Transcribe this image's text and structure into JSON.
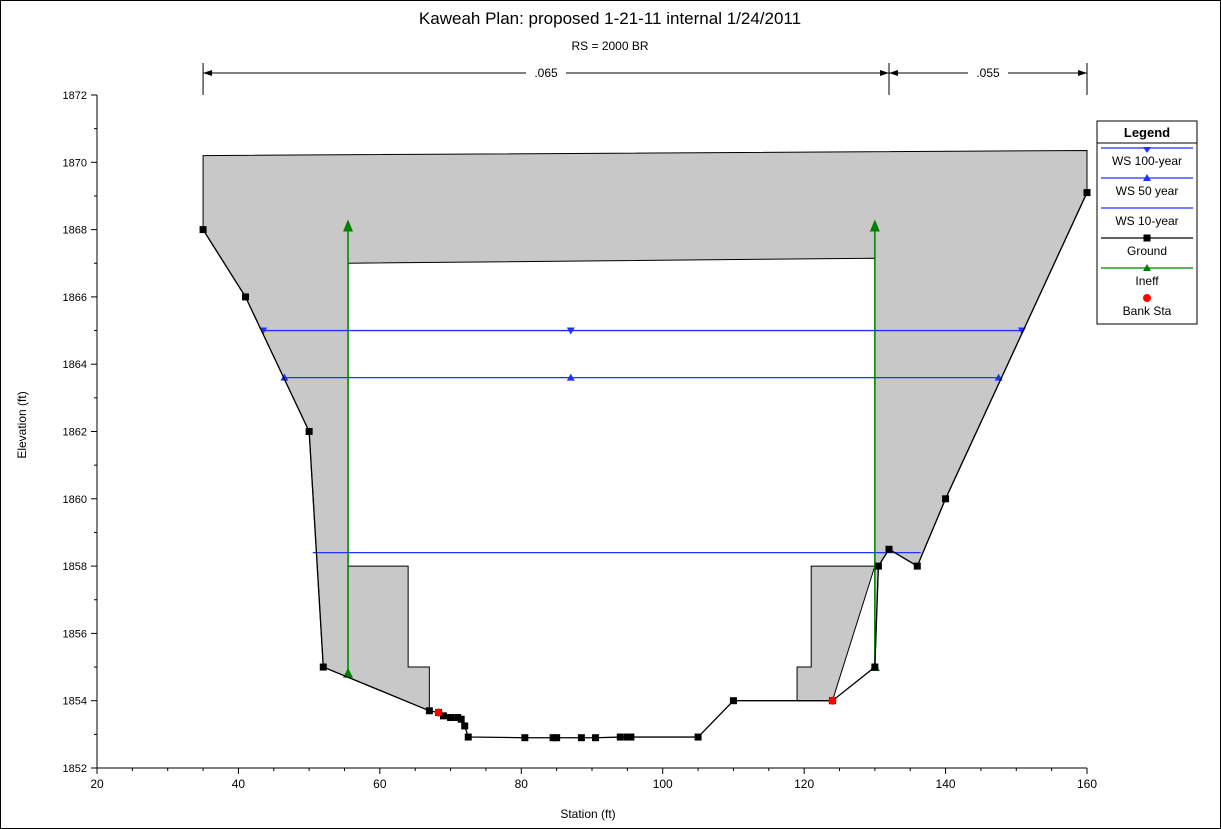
{
  "chart_data": {
    "type": "line",
    "title": "Kaweah       Plan: proposed 1-21-11 internal    1/24/2011",
    "subtitle": "RS = 2000    BR",
    "xlabel": "Station (ft)",
    "ylabel": "Elevation (ft)",
    "xlim": [
      20,
      160
    ],
    "ylim": [
      1852,
      1872
    ],
    "x_ticks": [
      20,
      40,
      60,
      80,
      100,
      120,
      140,
      160
    ],
    "y_ticks": [
      1852,
      1854,
      1856,
      1858,
      1860,
      1862,
      1864,
      1866,
      1868,
      1870,
      1872
    ],
    "y_tick_labels": [
      "1852",
      "1854",
      "1856",
      "1858",
      "1860",
      "1862",
      "1864",
      "1866",
      "1868",
      "1870",
      "1872"
    ],
    "grid": false,
    "legend_position": "right",
    "legend": {
      "title": "Legend",
      "entries": [
        {
          "label": "WS 100-year",
          "color": "#1f33ff",
          "marker": "triangle-down"
        },
        {
          "label": "WS 50 year",
          "color": "#1f33ff",
          "marker": "triangle-up"
        },
        {
          "label": "WS 10-year",
          "color": "#1f33ff",
          "marker": "none"
        },
        {
          "label": "Ground",
          "color": "#000000",
          "marker": "square"
        },
        {
          "label": "Ineff",
          "color": "#008000",
          "marker": "triangle-up"
        },
        {
          "label": "Bank Sta",
          "color": "#ff0000",
          "marker": "circle"
        }
      ]
    },
    "mannings": [
      {
        "x_start": 35,
        "x_end": 132,
        "label": ".065"
      },
      {
        "x_start": 132,
        "x_end": 160,
        "label": ".055"
      }
    ],
    "series": [
      {
        "name": "Ground",
        "color": "#000000",
        "x": [
          35,
          41,
          50,
          52,
          67,
          68.3,
          69,
          70,
          71,
          71.5,
          72,
          72.5,
          80.5,
          84.5,
          85,
          88.5,
          90.5,
          94,
          95,
          95.5,
          105,
          110,
          124,
          130,
          130.5,
          132,
          136,
          140,
          160
        ],
        "y": [
          1868,
          1866,
          1862,
          1855,
          1853.7,
          1853.65,
          1853.55,
          1853.5,
          1853.5,
          1853.45,
          1853.25,
          1852.92,
          1852.9,
          1852.9,
          1852.9,
          1852.9,
          1852.9,
          1852.92,
          1852.92,
          1852.92,
          1852.92,
          1854,
          1854,
          1855,
          1858,
          1858.5,
          1858,
          1860,
          1869.1
        ]
      },
      {
        "name": "WS 100-year",
        "color": "#1f33ff",
        "x": [
          43.5,
          150.8
        ],
        "y": [
          1865,
          1865
        ]
      },
      {
        "name": "WS 50 year",
        "color": "#1f33ff",
        "x": [
          46.5,
          147.5
        ],
        "y": [
          1863.6,
          1863.6
        ]
      },
      {
        "name": "WS 10-year",
        "color": "#1f33ff",
        "x": [
          50.5,
          136.5
        ],
        "y": [
          1858.4,
          1858.4
        ]
      },
      {
        "name": "Ineff",
        "color": "#008000",
        "x": [
          55.5,
          130
        ],
        "y": [
          1868.3,
          1868.3
        ],
        "base_y": [
          1854.8,
          1855
        ]
      },
      {
        "name": "Bank Sta",
        "color": "#ff0000",
        "x": [
          68.3,
          124
        ],
        "y": [
          1853.65,
          1854
        ]
      }
    ],
    "bridge_deck": {
      "left_x": 35,
      "right_x": 160,
      "high_chord": [
        1870.2,
        1870.35
      ],
      "low_chord_x": [
        55.5,
        130
      ],
      "low_chord_y": [
        1867,
        1867.15
      ]
    },
    "piers": [
      {
        "x": [
          55.5,
          64,
          64,
          67,
          67
        ],
        "y": [
          1858,
          1858,
          1855,
          1855,
          1853.7
        ]
      },
      {
        "x": [
          119,
          121,
          121,
          130
        ],
        "y": [
          1855,
          1855,
          1858,
          1858
        ]
      }
    ]
  }
}
